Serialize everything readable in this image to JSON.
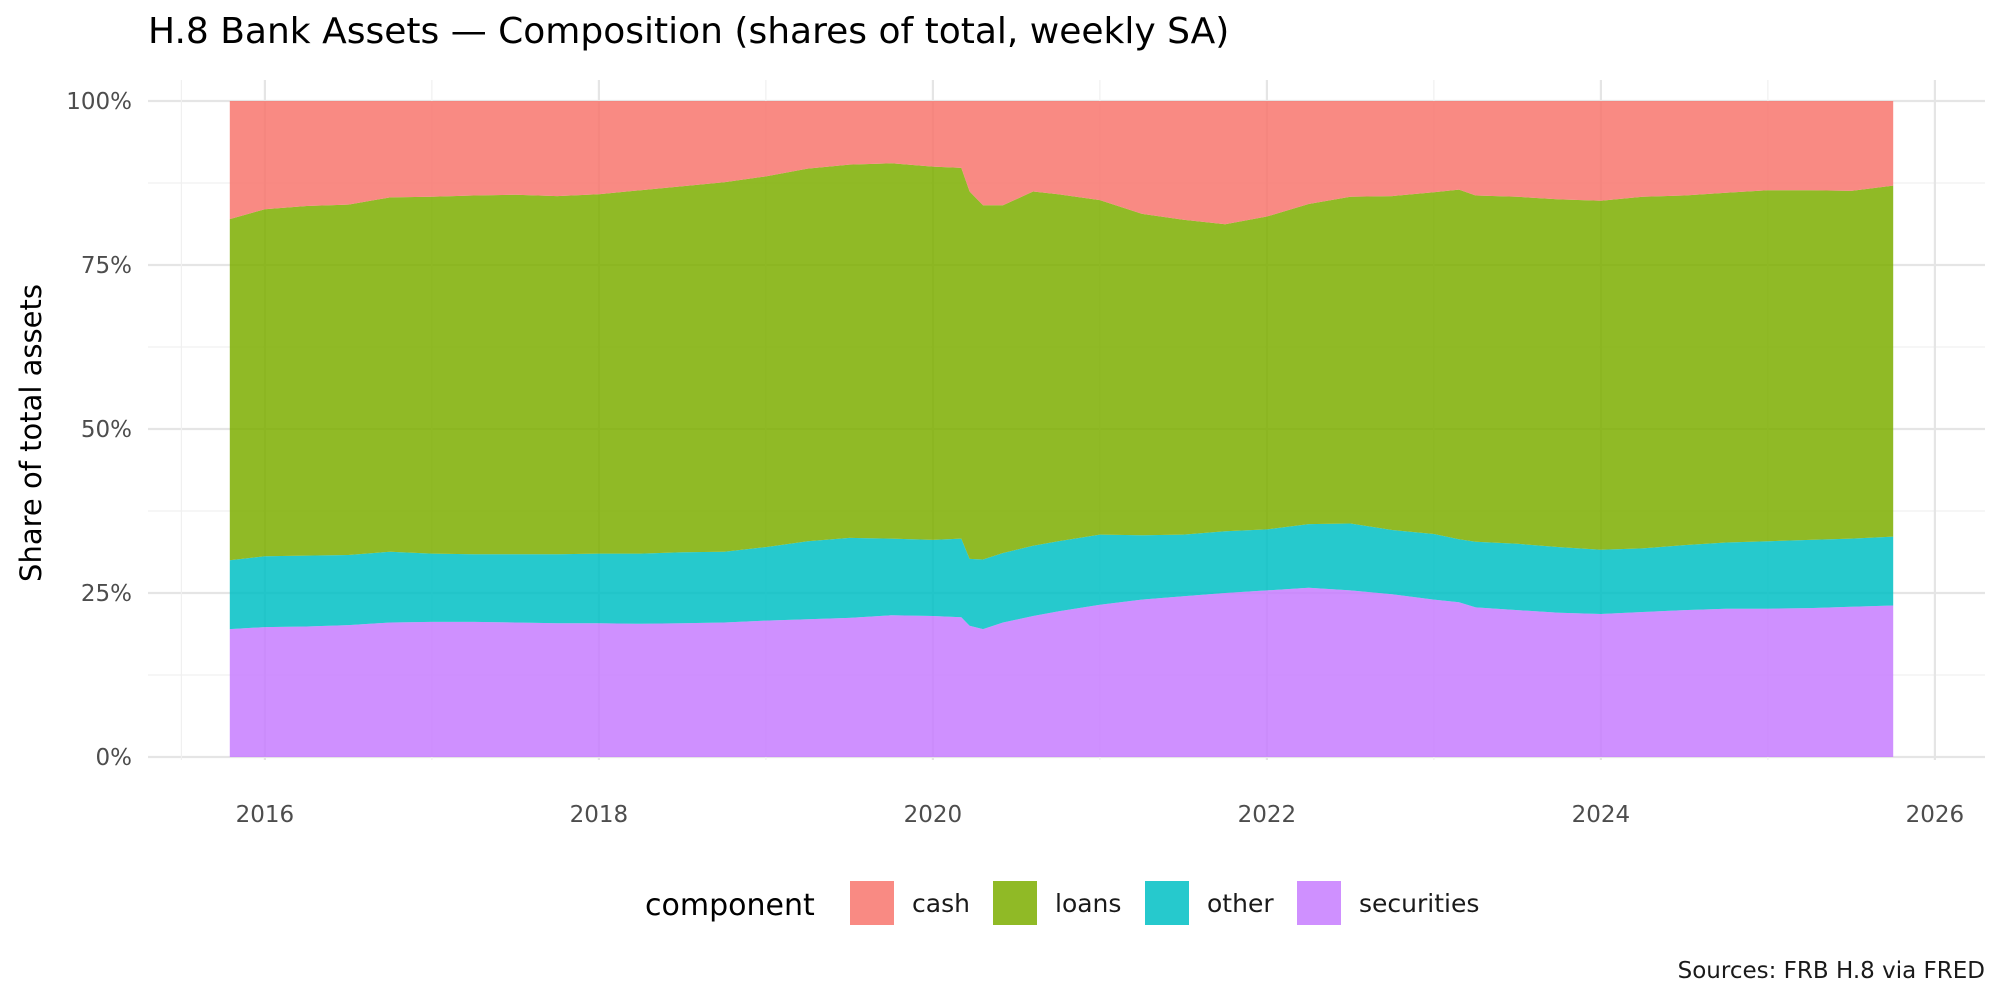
{
  "chart_data": {
    "type": "area",
    "stacked": true,
    "normalized": true,
    "title": "H.8 Bank Assets — Composition (shares of total, weekly SA)",
    "xlabel": "",
    "ylabel": "Share of total assets",
    "caption": "Sources: FRB H.8 via FRED",
    "xlim": [
      2015.3,
      2026.3
    ],
    "ylim": [
      0,
      1
    ],
    "x_ticks": [
      2016,
      2018,
      2020,
      2022,
      2024,
      2026
    ],
    "x_tick_labels": [
      "2016",
      "2018",
      "2020",
      "2022",
      "2024",
      "2026"
    ],
    "y_ticks": [
      0,
      0.25,
      0.5,
      0.75,
      1.0
    ],
    "y_tick_labels": [
      "0%",
      "25%",
      "50%",
      "75%",
      "100%"
    ],
    "grid": true,
    "legend": {
      "title": "component",
      "position": "bottom"
    },
    "x": [
      2015.79,
      2016.0,
      2016.25,
      2016.5,
      2016.75,
      2017.0,
      2017.25,
      2017.5,
      2017.75,
      2018.0,
      2018.25,
      2018.5,
      2018.75,
      2019.0,
      2019.25,
      2019.5,
      2019.75,
      2020.0,
      2020.17,
      2020.22,
      2020.3,
      2020.42,
      2020.6,
      2020.75,
      2021.0,
      2021.25,
      2021.5,
      2021.75,
      2022.0,
      2022.25,
      2022.5,
      2022.75,
      2023.0,
      2023.15,
      2023.25,
      2023.5,
      2023.75,
      2024.0,
      2024.25,
      2024.5,
      2024.75,
      2025.0,
      2025.25,
      2025.5,
      2025.75
    ],
    "series": [
      {
        "name": "securities",
        "color": "#C77CFF",
        "values": [
          0.195,
          0.198,
          0.199,
          0.201,
          0.205,
          0.206,
          0.206,
          0.205,
          0.204,
          0.204,
          0.203,
          0.204,
          0.205,
          0.208,
          0.21,
          0.212,
          0.216,
          0.215,
          0.213,
          0.2,
          0.195,
          0.205,
          0.215,
          0.222,
          0.232,
          0.24,
          0.245,
          0.25,
          0.254,
          0.258,
          0.254,
          0.248,
          0.24,
          0.236,
          0.228,
          0.224,
          0.22,
          0.218,
          0.221,
          0.224,
          0.226,
          0.226,
          0.227,
          0.229,
          0.231
        ]
      },
      {
        "name": "other",
        "color": "#00BFC4",
        "values": [
          0.105,
          0.108,
          0.108,
          0.107,
          0.108,
          0.104,
          0.103,
          0.104,
          0.105,
          0.106,
          0.107,
          0.108,
          0.108,
          0.112,
          0.119,
          0.122,
          0.117,
          0.116,
          0.12,
          0.102,
          0.106,
          0.106,
          0.107,
          0.107,
          0.107,
          0.098,
          0.094,
          0.094,
          0.093,
          0.097,
          0.102,
          0.098,
          0.1,
          0.096,
          0.1,
          0.101,
          0.1,
          0.098,
          0.097,
          0.099,
          0.101,
          0.103,
          0.104,
          0.104,
          0.105
        ]
      },
      {
        "name": "loans",
        "color": "#7CAE00",
        "values": [
          0.52,
          0.529,
          0.533,
          0.534,
          0.54,
          0.544,
          0.547,
          0.548,
          0.546,
          0.548,
          0.554,
          0.558,
          0.563,
          0.565,
          0.568,
          0.569,
          0.572,
          0.569,
          0.565,
          0.56,
          0.54,
          0.53,
          0.54,
          0.529,
          0.51,
          0.49,
          0.48,
          0.468,
          0.477,
          0.488,
          0.498,
          0.509,
          0.521,
          0.533,
          0.528,
          0.529,
          0.53,
          0.532,
          0.536,
          0.533,
          0.533,
          0.535,
          0.533,
          0.53,
          0.535
        ]
      },
      {
        "name": "cash",
        "color": "#F8766D",
        "values": [
          0.18,
          0.165,
          0.16,
          0.158,
          0.147,
          0.146,
          0.144,
          0.143,
          0.145,
          0.142,
          0.136,
          0.13,
          0.124,
          0.115,
          0.103,
          0.097,
          0.095,
          0.1,
          0.102,
          0.138,
          0.159,
          0.159,
          0.138,
          0.142,
          0.151,
          0.172,
          0.181,
          0.188,
          0.176,
          0.157,
          0.146,
          0.145,
          0.139,
          0.135,
          0.144,
          0.146,
          0.15,
          0.152,
          0.146,
          0.144,
          0.14,
          0.136,
          0.136,
          0.137,
          0.129
        ]
      }
    ],
    "legend_order": [
      "cash",
      "loans",
      "other",
      "securities"
    ]
  }
}
